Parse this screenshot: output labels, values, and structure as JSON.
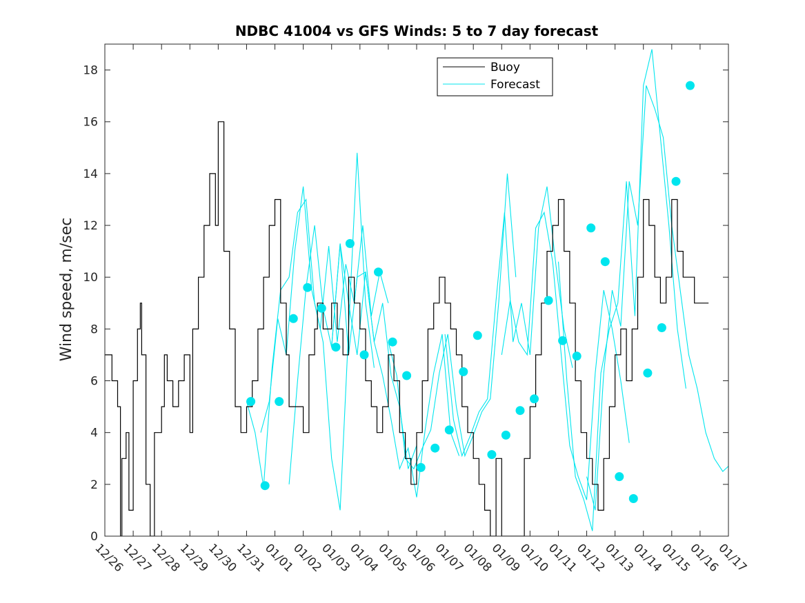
{
  "chart_data": {
    "type": "line",
    "title": "NDBC 41004 vs GFS Winds: 5 to 7 day forecast",
    "xlabel": "",
    "ylabel": "Wind speed, m/sec",
    "ylim": [
      0,
      19
    ],
    "yticks": [
      0,
      2,
      4,
      6,
      8,
      10,
      12,
      14,
      16,
      18
    ],
    "xlim": [
      0,
      22
    ],
    "xtick_labels": [
      "12/26",
      "12/27",
      "12/28",
      "12/29",
      "12/30",
      "12/31",
      "01/01",
      "01/02",
      "01/03",
      "01/04",
      "01/05",
      "01/06",
      "01/07",
      "01/08",
      "01/09",
      "01/10",
      "01/11",
      "01/12",
      "01/13",
      "01/14",
      "01/15",
      "01/16",
      "01/17"
    ],
    "legend": {
      "position": "top-center",
      "entries": [
        {
          "label": "Buoy",
          "color": "#000000"
        },
        {
          "label": "Forecast",
          "color": "#00e5ee"
        }
      ]
    },
    "colors": {
      "buoy": "#000000",
      "forecast": "#00e5ee"
    },
    "series": [
      {
        "name": "Buoy",
        "style": "step",
        "x": [
          0.0,
          0.25,
          0.45,
          0.55,
          0.6,
          0.75,
          0.85,
          1.0,
          1.15,
          1.25,
          1.3,
          1.45,
          1.6,
          1.75,
          2.0,
          2.1,
          2.2,
          2.4,
          2.6,
          2.8,
          3.0,
          3.1,
          3.3,
          3.5,
          3.7,
          3.9,
          4.0,
          4.2,
          4.4,
          4.6,
          4.8,
          5.0,
          5.2,
          5.4,
          5.6,
          5.8,
          6.0,
          6.2,
          6.4,
          6.5,
          6.8,
          7.0,
          7.2,
          7.4,
          7.5,
          7.7,
          8.0,
          8.2,
          8.4,
          8.6,
          8.8,
          9.0,
          9.2,
          9.4,
          9.6,
          9.8,
          10.0,
          10.2,
          10.4,
          10.6,
          10.8,
          11.0,
          11.2,
          11.4,
          11.6,
          11.8,
          12.0,
          12.2,
          12.4,
          12.6,
          12.8,
          13.0,
          13.2,
          13.4,
          13.6,
          13.8,
          14.0,
          14.2,
          14.4,
          14.6,
          14.8,
          15.0,
          15.2,
          15.4,
          15.6,
          15.8,
          16.0,
          16.2,
          16.4,
          16.6,
          16.8,
          17.0,
          17.2,
          17.4,
          17.6,
          17.8,
          18.0,
          18.2,
          18.4,
          18.6,
          18.8,
          19.0,
          19.2,
          19.4,
          19.6,
          19.8,
          20.0,
          20.2,
          20.4,
          20.6,
          20.8,
          21.0,
          21.2
        ],
        "values": [
          7,
          6,
          5,
          0,
          3,
          4,
          1,
          6,
          8,
          9,
          7,
          2,
          0,
          4,
          5,
          7,
          6,
          5,
          6,
          7,
          4,
          8,
          10,
          12,
          14,
          12,
          16,
          11,
          8,
          5,
          4,
          5,
          6,
          8,
          10,
          12,
          13,
          9,
          7,
          5,
          5,
          4,
          7,
          8,
          9,
          8,
          9,
          8,
          7,
          10,
          9,
          8,
          6,
          5,
          4,
          5,
          7,
          6,
          4,
          3,
          2,
          4,
          6,
          8,
          9,
          10,
          9,
          8,
          7,
          5,
          4,
          3,
          2,
          1,
          0,
          3,
          0,
          0,
          0,
          0,
          3,
          5,
          7,
          9,
          11,
          12,
          13,
          11,
          9,
          6,
          4,
          3,
          2,
          1,
          3,
          5,
          7,
          8,
          6,
          8,
          10,
          13,
          12,
          10,
          9,
          10,
          13,
          11,
          10,
          10,
          9,
          9,
          9
        ]
      },
      {
        "name": "Forecast",
        "style": "lines",
        "runs": [
          {
            "x": [
              5.0,
              5.3,
              5.6,
              5.9,
              6.2,
              6.5,
              6.8,
              7.1,
              7.4,
              7.7,
              8.0,
              8.3,
              8.6,
              8.9,
              9.2,
              9.5
            ],
            "values": [
              5.2,
              4.0,
              1.9,
              6.5,
              9.5,
              10.0,
              12.5,
              13.0,
              9.0,
              7.5,
              3.0,
              1.0,
              8.0,
              14.8,
              9.0,
              6.5
            ]
          },
          {
            "x": [
              5.5,
              5.8,
              6.1,
              6.4,
              6.7,
              7.0,
              7.3,
              7.6,
              7.9,
              8.2,
              8.5,
              8.8,
              9.1,
              9.4,
              9.7,
              10.0
            ],
            "values": [
              4.0,
              5.2,
              8.4,
              7.0,
              11.0,
              13.5,
              9.5,
              8.0,
              11.2,
              7.5,
              10.5,
              9.0,
              12.0,
              8.5,
              10.2,
              9.0
            ]
          },
          {
            "x": [
              6.5,
              6.8,
              7.1,
              7.4,
              7.7,
              8.0,
              8.3,
              8.6,
              8.9,
              9.2,
              9.5,
              9.8,
              10.1,
              10.4,
              10.7,
              11.0
            ],
            "values": [
              2.0,
              6.0,
              9.6,
              12.0,
              8.8,
              7.3,
              11.3,
              7.0,
              10.0,
              10.2,
              7.5,
              9.0,
              6.2,
              5.0,
              2.6,
              3.5
            ]
          },
          {
            "x": [
              8.0,
              8.3,
              8.6,
              8.9,
              9.2,
              9.5,
              9.8,
              10.1,
              10.4,
              10.7,
              11.0,
              11.3,
              11.6,
              11.9,
              12.2,
              12.5
            ],
            "values": [
              7.3,
              11.3,
              9.0,
              7.0,
              10.2,
              7.5,
              6.2,
              4.5,
              2.6,
              3.4,
              1.5,
              4.1,
              6.3,
              7.8,
              4.0,
              3.1
            ]
          },
          {
            "x": [
              10.0,
              10.3,
              10.6,
              10.9,
              11.2,
              11.5,
              11.8,
              12.1,
              12.4,
              12.7,
              13.0,
              13.3,
              13.6,
              13.9,
              14.2,
              14.5
            ],
            "values": [
              7.5,
              6.2,
              3.0,
              2.6,
              3.4,
              4.1,
              6.3,
              7.8,
              5.0,
              3.1,
              3.9,
              4.8,
              5.3,
              9.1,
              14.0,
              10.0
            ]
          },
          {
            "x": [
              12.0,
              12.3,
              12.6,
              12.9,
              13.2,
              13.5,
              13.8,
              14.1,
              14.4,
              14.7,
              15.0,
              15.3,
              15.6,
              15.9,
              16.2,
              16.5
            ],
            "values": [
              7.8,
              4.5,
              3.1,
              3.9,
              4.8,
              5.3,
              9.1,
              12.5,
              7.5,
              9.0,
              7.0,
              11.9,
              13.5,
              10.6,
              8.0,
              6.5
            ]
          },
          {
            "x": [
              14.0,
              14.3,
              14.6,
              14.9,
              15.2,
              15.5,
              15.8,
              16.1,
              16.4,
              16.7,
              17.0,
              17.3,
              17.6,
              17.9,
              18.2,
              18.5
            ],
            "values": [
              7.0,
              9.1,
              7.5,
              7.0,
              11.9,
              12.5,
              10.6,
              7.0,
              3.5,
              2.3,
              1.4,
              6.3,
              9.5,
              8.0,
              6.0,
              3.6
            ]
          },
          {
            "x": [
              16.0,
              16.3,
              16.6,
              16.9,
              17.2,
              17.5,
              17.8,
              18.1,
              18.4,
              18.7,
              19.0,
              19.3,
              19.6,
              19.9,
              20.2,
              20.5
            ],
            "values": [
              10.6,
              6.0,
              2.3,
              1.4,
              0.2,
              6.3,
              8.0,
              9.0,
              13.7,
              8.5,
              17.4,
              18.8,
              15.4,
              12.0,
              8.0,
              5.7
            ]
          },
          {
            "x": [
              17.0,
              17.3,
              17.6,
              17.9,
              18.2,
              18.5,
              18.8,
              19.1,
              19.4,
              19.7,
              20.0,
              20.3,
              20.6,
              20.9,
              21.2,
              21.5,
              21.8,
              22.0
            ],
            "values": [
              2.3,
              1.0,
              6.3,
              9.5,
              8.1,
              13.7,
              12.0,
              17.4,
              16.5,
              15.4,
              12.0,
              9.5,
              7.0,
              5.7,
              4.0,
              3.0,
              2.5,
              2.7
            ]
          }
        ]
      },
      {
        "name": "Forecast markers",
        "style": "markers",
        "x": [
          5.15,
          5.65,
          6.15,
          6.65,
          7.15,
          7.65,
          8.15,
          8.65,
          9.15,
          9.65,
          10.15,
          10.65,
          11.15,
          11.65,
          12.15,
          12.65,
          13.15,
          13.65,
          14.15,
          14.65,
          15.15,
          15.65,
          16.15,
          16.65,
          17.15,
          17.65,
          18.15,
          18.65,
          19.15,
          19.65,
          20.15,
          20.65
        ],
        "values": [
          5.2,
          1.95,
          5.2,
          8.4,
          9.6,
          8.8,
          7.3,
          11.3,
          7.0,
          10.2,
          7.5,
          6.2,
          2.65,
          3.4,
          4.1,
          6.35,
          7.75,
          3.15,
          3.9,
          4.85,
          5.3,
          9.1,
          7.55,
          6.95,
          11.9,
          10.6,
          2.3,
          1.45,
          6.3,
          8.05,
          13.7,
          17.4
        ]
      }
    ]
  }
}
